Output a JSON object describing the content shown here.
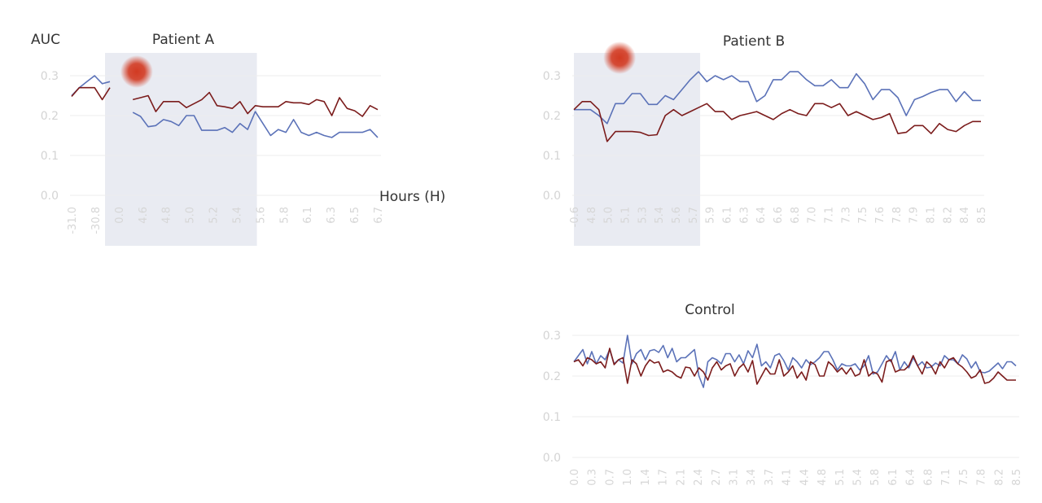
{
  "colors": {
    "series_blue": "#5b72b8",
    "series_red": "#7b1c1c",
    "shade": "#e9ebf2",
    "marker": "#d23a22"
  },
  "chart_data": [
    {
      "id": "a",
      "type": "line",
      "title": "Patient A",
      "ylabel": "AUC",
      "xlabel": "Hours (H)",
      "ylim": [
        0,
        0.3
      ],
      "yticks": [
        "0.3",
        "0.2",
        "0.1",
        "0.0"
      ],
      "xtick_labels": [
        "-31.0",
        "-30.8",
        "0.0",
        "4.6",
        "4.8",
        "5.0",
        "5.2",
        "5.4",
        "5.6",
        "5.8",
        "6.1",
        "6.3",
        "6.5",
        "6.7"
      ],
      "shaded_region_index": [
        5,
        24
      ],
      "marker_index": 8.5,
      "series": [
        {
          "color": "#5b72b8",
          "values": [
            0.25,
            0.27,
            0.285,
            0.3,
            0.28,
            0.285,
            null,
            null,
            0.208,
            0.198,
            0.172,
            0.175,
            0.19,
            0.185,
            0.175,
            0.2,
            0.2,
            0.163,
            0.163,
            0.163,
            0.17,
            0.158,
            0.18,
            0.165,
            0.21,
            0.18,
            0.15,
            0.165,
            0.158,
            0.19,
            0.158,
            0.15,
            0.158,
            0.15,
            0.145,
            0.158,
            0.158,
            0.158,
            0.158,
            0.165,
            0.145
          ]
        },
        {
          "color": "#7b1c1c",
          "values": [
            0.248,
            0.27,
            0.27,
            0.27,
            0.24,
            0.27,
            null,
            null,
            0.24,
            0.245,
            0.25,
            0.21,
            0.235,
            0.235,
            0.235,
            0.22,
            0.23,
            0.24,
            0.258,
            0.225,
            0.222,
            0.218,
            0.235,
            0.205,
            0.225,
            0.222,
            0.222,
            0.222,
            0.235,
            0.232,
            0.232,
            0.228,
            0.24,
            0.235,
            0.2,
            0.245,
            0.218,
            0.212,
            0.198,
            0.225,
            0.215
          ]
        }
      ]
    },
    {
      "id": "b",
      "type": "line",
      "title": "Patient B",
      "ylim": [
        0,
        0.3
      ],
      "yticks": [
        "0.3",
        "0.2",
        "0.1",
        "0.0"
      ],
      "xtick_labels": [
        "-0.6",
        "4.8",
        "5.0",
        "5.1",
        "5.3",
        "5.4",
        "5.6",
        "5.7",
        "5.9",
        "6.1",
        "6.3",
        "6.4",
        "6.6",
        "6.8",
        "7.0",
        "7.1",
        "7.3",
        "7.5",
        "7.6",
        "7.8",
        "7.9",
        "8.1",
        "8.2",
        "8.4",
        "8.5"
      ],
      "shaded_region_index": [
        0,
        15
      ],
      "marker_index": 5.5,
      "series": [
        {
          "color": "#5b72b8",
          "values": [
            0.215,
            0.215,
            0.215,
            0.2,
            0.18,
            0.23,
            0.23,
            0.255,
            0.255,
            0.228,
            0.228,
            0.25,
            0.24,
            0.265,
            0.29,
            0.31,
            0.285,
            0.3,
            0.29,
            0.3,
            0.285,
            0.285,
            0.235,
            0.25,
            0.29,
            0.29,
            0.31,
            0.31,
            0.29,
            0.275,
            0.275,
            0.29,
            0.27,
            0.27,
            0.305,
            0.28,
            0.24,
            0.265,
            0.265,
            0.245,
            0.2,
            0.24,
            0.248,
            0.258,
            0.265,
            0.265,
            0.235,
            0.26,
            0.238,
            0.238
          ]
        },
        {
          "color": "#7b1c1c",
          "values": [
            0.215,
            0.235,
            0.235,
            0.215,
            0.135,
            0.16,
            0.16,
            0.16,
            0.158,
            0.15,
            0.152,
            0.2,
            0.215,
            0.2,
            0.21,
            0.22,
            0.23,
            0.21,
            0.21,
            0.19,
            0.2,
            0.205,
            0.21,
            0.2,
            0.19,
            0.205,
            0.215,
            0.205,
            0.2,
            0.23,
            0.23,
            0.22,
            0.23,
            0.2,
            0.21,
            0.2,
            0.19,
            0.195,
            0.205,
            0.155,
            0.158,
            0.175,
            0.175,
            0.155,
            0.18,
            0.165,
            0.16,
            0.175,
            0.185,
            0.185
          ]
        }
      ]
    },
    {
      "id": "c",
      "type": "line",
      "title": "Control",
      "ylim": [
        0,
        0.3
      ],
      "yticks": [
        "0.3",
        "0.2",
        "0.1",
        "0.0"
      ],
      "xtick_labels": [
        "0.0",
        "0.3",
        "0.7",
        "1.0",
        "1.4",
        "1.7",
        "2.1",
        "2.4",
        "2.7",
        "3.1",
        "3.4",
        "3.7",
        "4.1",
        "4.4",
        "4.8",
        "5.1",
        "5.4",
        "5.8",
        "6.1",
        "6.4",
        "6.8",
        "7.1",
        "7.5",
        "7.8",
        "8.2",
        "8.5"
      ],
      "series": [
        {
          "color": "#5b72b8",
          "values": [
            0.235,
            0.25,
            0.265,
            0.23,
            0.26,
            0.23,
            0.25,
            0.24,
            0.265,
            0.23,
            0.24,
            0.232,
            0.3,
            0.23,
            0.255,
            0.265,
            0.24,
            0.262,
            0.265,
            0.258,
            0.275,
            0.245,
            0.268,
            0.235,
            0.245,
            0.245,
            0.255,
            0.265,
            0.2,
            0.172,
            0.235,
            0.245,
            0.24,
            0.23,
            0.255,
            0.255,
            0.235,
            0.252,
            0.23,
            0.262,
            0.245,
            0.278,
            0.225,
            0.235,
            0.22,
            0.25,
            0.255,
            0.238,
            0.215,
            0.245,
            0.235,
            0.22,
            0.24,
            0.228,
            0.235,
            0.245,
            0.26,
            0.26,
            0.24,
            0.215,
            0.23,
            0.225,
            0.225,
            0.23,
            0.215,
            0.225,
            0.25,
            0.205,
            0.21,
            0.23,
            0.25,
            0.235,
            0.26,
            0.215,
            0.235,
            0.22,
            0.245,
            0.225,
            0.235,
            0.22,
            0.222,
            0.232,
            0.225,
            0.25,
            0.24,
            0.24,
            0.23,
            0.252,
            0.242,
            0.22,
            0.235,
            0.21,
            0.208,
            0.212,
            0.222,
            0.232,
            0.218,
            0.235,
            0.235,
            0.225
          ]
        },
        {
          "color": "#7b1c1c",
          "values": [
            0.235,
            0.24,
            0.225,
            0.245,
            0.24,
            0.23,
            0.235,
            0.22,
            0.268,
            0.228,
            0.24,
            0.245,
            0.182,
            0.24,
            0.23,
            0.2,
            0.225,
            0.24,
            0.232,
            0.235,
            0.21,
            0.215,
            0.21,
            0.2,
            0.195,
            0.222,
            0.22,
            0.2,
            0.22,
            0.21,
            0.19,
            0.22,
            0.235,
            0.215,
            0.225,
            0.23,
            0.2,
            0.22,
            0.23,
            0.21,
            0.238,
            0.18,
            0.2,
            0.22,
            0.205,
            0.205,
            0.24,
            0.2,
            0.21,
            0.225,
            0.195,
            0.21,
            0.19,
            0.235,
            0.228,
            0.2,
            0.2,
            0.235,
            0.225,
            0.21,
            0.22,
            0.205,
            0.22,
            0.2,
            0.205,
            0.24,
            0.2,
            0.21,
            0.205,
            0.185,
            0.235,
            0.24,
            0.21,
            0.215,
            0.215,
            0.225,
            0.25,
            0.225,
            0.205,
            0.235,
            0.225,
            0.205,
            0.235,
            0.22,
            0.24,
            0.245,
            0.23,
            0.222,
            0.21,
            0.195,
            0.2,
            0.215,
            0.182,
            0.185,
            0.195,
            0.21,
            0.2,
            0.19,
            0.19,
            0.19
          ]
        }
      ]
    }
  ]
}
